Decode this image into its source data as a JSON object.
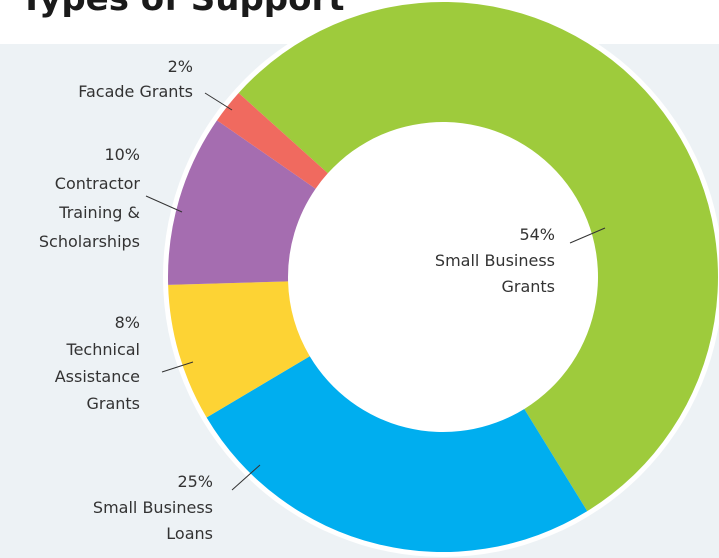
{
  "chart_data": {
    "type": "donut",
    "title": "Types of Support",
    "categories": [
      [
        "Small Business",
        "Grants"
      ],
      [
        "Small Business",
        "Loans"
      ],
      [
        "Technical",
        "Assistance",
        "Grants"
      ],
      [
        "Contractor",
        "Training &",
        "Scholarships"
      ],
      [
        "Facade Grants"
      ]
    ],
    "values": [
      54,
      25,
      8,
      10,
      2
    ],
    "value_labels": [
      "54%",
      "25%",
      "8%",
      "10%",
      "2%"
    ],
    "colors": [
      "#9ecb3c",
      "#00aeef",
      "#fdd334",
      "#a56db0",
      "#f06a5f"
    ]
  }
}
